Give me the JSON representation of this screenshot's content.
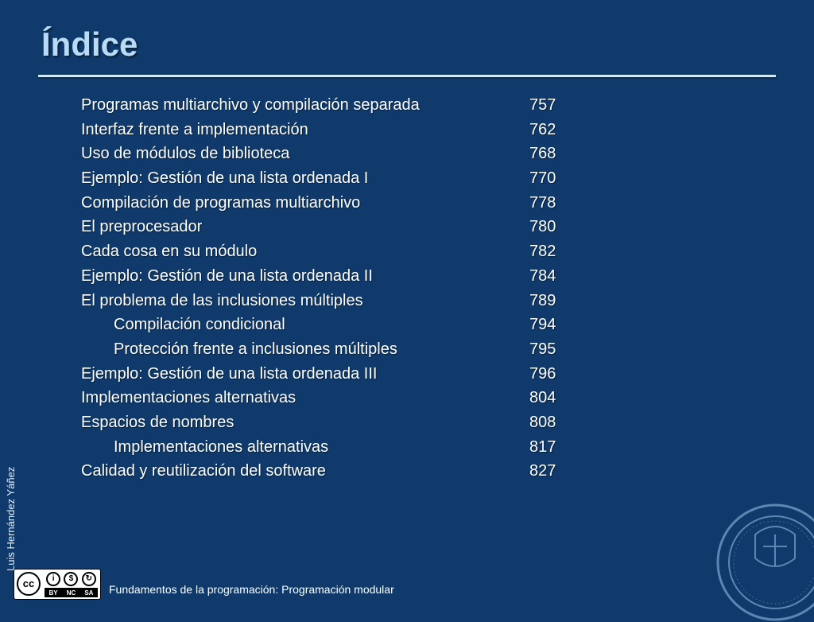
{
  "slide": {
    "title": "Índice",
    "author": "Luis Hernández Yáñez",
    "footer": "Fundamentos de la programación: Programación modular"
  },
  "license": {
    "badge": "cc",
    "labels": [
      "BY",
      "NC",
      "SA"
    ]
  },
  "toc": [
    {
      "text": "Programas multiarchivo y compilación separada",
      "page": "757",
      "indent": false
    },
    {
      "text": "Interfaz frente a implementación",
      "page": "762",
      "indent": false
    },
    {
      "text": "Uso de módulos de biblioteca",
      "page": "768",
      "indent": false
    },
    {
      "text": "Ejemplo: Gestión de una lista ordenada I",
      "page": "770",
      "indent": false
    },
    {
      "text": "Compilación de programas multiarchivo",
      "page": "778",
      "indent": false
    },
    {
      "text": "El preprocesador",
      "page": "780",
      "indent": false
    },
    {
      "text": "Cada cosa en su módulo",
      "page": "782",
      "indent": false
    },
    {
      "text": "Ejemplo: Gestión de una lista ordenada II",
      "page": "784",
      "indent": false
    },
    {
      "text": "El problema de las inclusiones múltiples",
      "page": "789",
      "indent": false
    },
    {
      "text": "Compilación condicional",
      "page": "794",
      "indent": true
    },
    {
      "text": "Protección frente a inclusiones múltiples",
      "page": "795",
      "indent": true
    },
    {
      "text": "Ejemplo: Gestión de una lista ordenada III",
      "page": "796",
      "indent": false
    },
    {
      "text": "Implementaciones alternativas",
      "page": "804",
      "indent": false
    },
    {
      "text": "Espacios de nombres",
      "page": "808",
      "indent": false
    },
    {
      "text": "Implementaciones alternativas",
      "page": "817",
      "indent": true
    },
    {
      "text": "Calidad y reutilización del software",
      "page": "827",
      "indent": false
    }
  ],
  "colors": {
    "background": "#0f3a6b",
    "title": "#b8dcf6",
    "rule": "#cfeaf9"
  }
}
